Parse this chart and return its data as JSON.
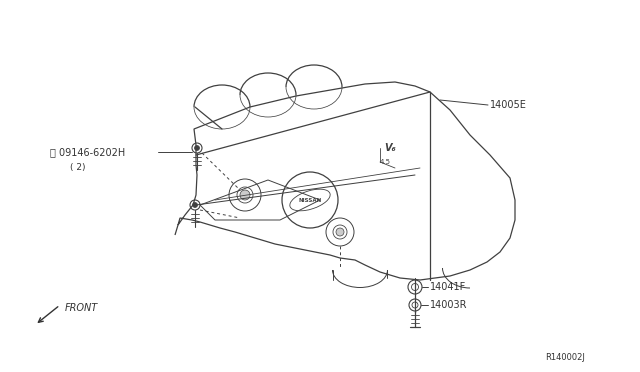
{
  "background_color": "#ffffff",
  "line_color": "#404040",
  "figure_width": 6.4,
  "figure_height": 3.72,
  "dpi": 100,
  "label_14005E": "14005E",
  "label_bolt": "Ⓒ 09146-6202H",
  "label_bolt2": "( 2)",
  "label_14041F": "14041F",
  "label_14003R": "14003R",
  "label_front": "FRONT",
  "label_ref": "R140002J"
}
